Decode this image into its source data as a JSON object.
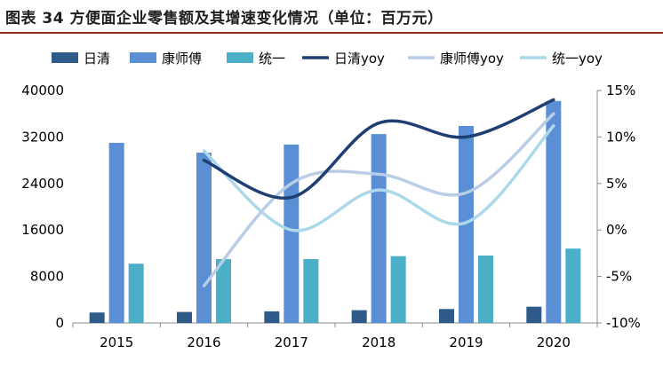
{
  "title": "图表 34 方便面企业零售额及其增速变化情况（单位：百万元）",
  "colors": {
    "rule": "#8c2f1c",
    "nissin_bar": "#2e5b8a",
    "ksf_bar": "#5a8fd6",
    "uni_bar": "#4aafc7",
    "nissin_line": "#1f3f73",
    "ksf_line": "#b9cde6",
    "uni_line": "#acd9ea"
  },
  "chart_data": {
    "type": "bar",
    "categories": [
      "2015",
      "2016",
      "2017",
      "2018",
      "2019",
      "2020"
    ],
    "ylim": [
      0,
      40000
    ],
    "y_ticks": [
      "0",
      "8000",
      "16000",
      "24000",
      "32000",
      "40000"
    ],
    "y2lim": [
      -10,
      15
    ],
    "y2_ticks": [
      "-10%",
      "-5%",
      "0%",
      "5%",
      "10%",
      "15%"
    ],
    "legend_position": "top",
    "grid": false,
    "series": [
      {
        "name": "日清",
        "type": "bar",
        "axis": "left",
        "color_key": "nissin_bar",
        "values": [
          1800,
          1900,
          2000,
          2200,
          2400,
          2800
        ]
      },
      {
        "name": "康师傅",
        "type": "bar",
        "axis": "left",
        "color_key": "ksf_bar",
        "values": [
          31000,
          29300,
          30700,
          32500,
          33900,
          38200
        ]
      },
      {
        "name": "统一",
        "type": "bar",
        "axis": "left",
        "color_key": "uni_bar",
        "values": [
          10200,
          11000,
          11000,
          11500,
          11600,
          12800
        ]
      },
      {
        "name": "日清yoy",
        "type": "line",
        "axis": "right",
        "color_key": "nissin_line",
        "values": [
          null,
          7.5,
          3.5,
          11.5,
          10.0,
          14.0
        ]
      },
      {
        "name": "康师傅yoy",
        "type": "line",
        "axis": "right",
        "color_key": "ksf_line",
        "values": [
          null,
          -6.0,
          5.0,
          6.0,
          4.0,
          12.5
        ]
      },
      {
        "name": "统一yoy",
        "type": "line",
        "axis": "right",
        "color_key": "uni_line",
        "values": [
          null,
          8.5,
          0.0,
          4.3,
          0.8,
          11.2
        ]
      }
    ]
  }
}
